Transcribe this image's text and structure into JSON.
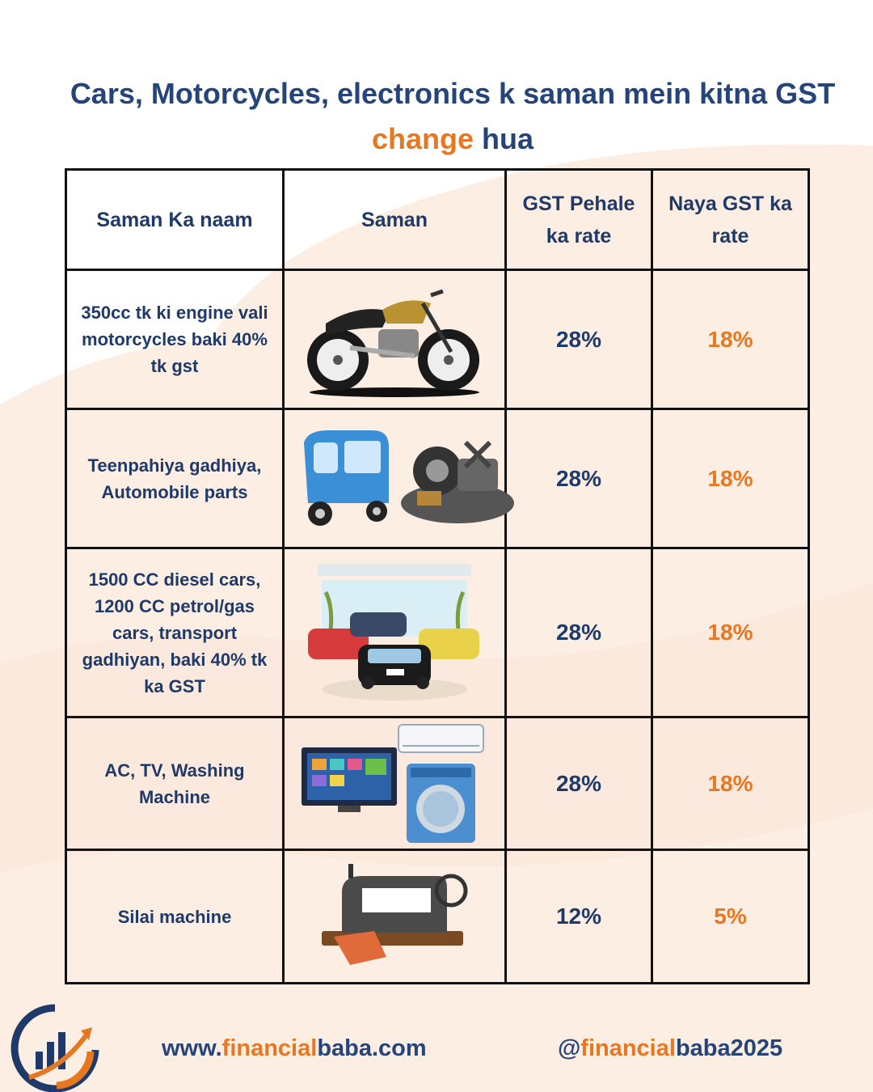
{
  "title": {
    "line1": "Cars, Motorcycles, electronics  k saman mein kitna GST",
    "line2_highlight": "change",
    "line2_rest": " hua"
  },
  "table": {
    "headers": [
      "Saman Ka naam",
      "Saman",
      "GST Pehale ka rate",
      "Naya GST ka rate"
    ],
    "rows": [
      {
        "name": "350cc tk ki engine vali motorcycles baki 40% tk gst",
        "image": "motorcycle-icon",
        "old_rate": "28%",
        "new_rate": "18%"
      },
      {
        "name": "Teenpahiya gadhiya, Automobile parts",
        "image": "auto-rickshaw-and-parts-icon",
        "old_rate": "28%",
        "new_rate": "18%"
      },
      {
        "name": "1500 CC diesel cars, 1200 CC petrol/gas cars, transport gadhiyan, baki 40% tk ka GST",
        "image": "car-showroom-icon",
        "old_rate": "28%",
        "new_rate": "18%"
      },
      {
        "name": "AC, TV, Washing Machine",
        "image": "appliances-icon",
        "old_rate": "28%",
        "new_rate": "18%"
      },
      {
        "name": "Silai machine",
        "image": "sewing-machine-icon",
        "old_rate": "12%",
        "new_rate": "5%"
      }
    ]
  },
  "footer": {
    "site_prefix": "www.",
    "site_highlight": "financial",
    "site_rest": "baba.com",
    "handle_prefix": "@",
    "handle_highlight": "financial",
    "handle_rest": "baba2025"
  },
  "colors": {
    "navy": "#24447a",
    "orange": "#e87722",
    "wash": "#fdeee4"
  }
}
